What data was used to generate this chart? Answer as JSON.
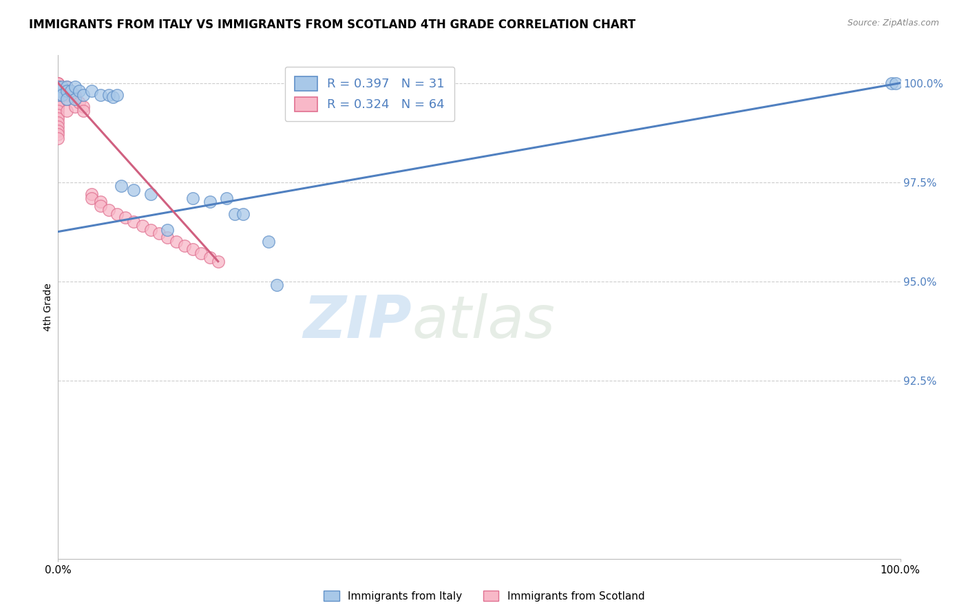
{
  "title": "IMMIGRANTS FROM ITALY VS IMMIGRANTS FROM SCOTLAND 4TH GRADE CORRELATION CHART",
  "source": "Source: ZipAtlas.com",
  "ylabel": "4th Grade",
  "xmin": 0.0,
  "xmax": 1.0,
  "ymin": 0.88,
  "ymax": 1.007,
  "legend_blue_r": "R = 0.397",
  "legend_blue_n": "N = 31",
  "legend_pink_r": "R = 0.324",
  "legend_pink_n": "N = 64",
  "watermark_zip": "ZIP",
  "watermark_atlas": "atlas",
  "blue_color": "#A8C8E8",
  "pink_color": "#F8B8C8",
  "blue_edge_color": "#6090C8",
  "pink_edge_color": "#E07090",
  "blue_line_color": "#5080C0",
  "pink_line_color": "#D06080",
  "background_color": "#FFFFFF",
  "grid_color": "#CCCCCC",
  "blue_scatter_x": [
    0.0,
    0.0,
    0.0,
    0.005,
    0.005,
    0.01,
    0.01,
    0.01,
    0.015,
    0.02,
    0.02,
    0.025,
    0.03,
    0.04,
    0.05,
    0.06,
    0.065,
    0.07,
    0.075,
    0.09,
    0.11,
    0.13,
    0.16,
    0.18,
    0.2,
    0.21,
    0.22,
    0.25,
    0.26,
    0.99,
    0.995
  ],
  "blue_scatter_y": [
    0.999,
    0.998,
    0.997,
    0.999,
    0.997,
    0.999,
    0.998,
    0.996,
    0.998,
    0.999,
    0.996,
    0.998,
    0.997,
    0.998,
    0.997,
    0.997,
    0.9965,
    0.997,
    0.974,
    0.973,
    0.972,
    0.963,
    0.971,
    0.97,
    0.971,
    0.967,
    0.967,
    0.96,
    0.949,
    1.0,
    1.0
  ],
  "pink_scatter_x": [
    0.0,
    0.0,
    0.0,
    0.0,
    0.0,
    0.0,
    0.0,
    0.0,
    0.0,
    0.0,
    0.0,
    0.0,
    0.0,
    0.0,
    0.0,
    0.0,
    0.0,
    0.0,
    0.0,
    0.0,
    0.0,
    0.0,
    0.0,
    0.0,
    0.0,
    0.0,
    0.0,
    0.0,
    0.0,
    0.0,
    0.0,
    0.0,
    0.0,
    0.0,
    0.005,
    0.005,
    0.01,
    0.01,
    0.01,
    0.01,
    0.02,
    0.02,
    0.02,
    0.025,
    0.03,
    0.03,
    0.04,
    0.04,
    0.05,
    0.05,
    0.06,
    0.07,
    0.08,
    0.09,
    0.1,
    0.11,
    0.12,
    0.13,
    0.14,
    0.15,
    0.16,
    0.17,
    0.18,
    0.19
  ],
  "pink_scatter_y": [
    1.0,
    1.0,
    1.0,
    0.999,
    0.999,
    0.999,
    0.999,
    0.999,
    0.998,
    0.998,
    0.998,
    0.998,
    0.998,
    0.997,
    0.997,
    0.997,
    0.997,
    0.997,
    0.996,
    0.996,
    0.996,
    0.996,
    0.995,
    0.995,
    0.994,
    0.994,
    0.993,
    0.992,
    0.991,
    0.99,
    0.989,
    0.988,
    0.987,
    0.986,
    0.998,
    0.997,
    0.999,
    0.997,
    0.996,
    0.993,
    0.997,
    0.996,
    0.994,
    0.995,
    0.994,
    0.993,
    0.972,
    0.971,
    0.97,
    0.969,
    0.968,
    0.967,
    0.966,
    0.965,
    0.964,
    0.963,
    0.962,
    0.961,
    0.96,
    0.959,
    0.958,
    0.957,
    0.956,
    0.955
  ],
  "blue_trendline_x": [
    0.0,
    1.0
  ],
  "blue_trendline_y": [
    0.9625,
    1.0
  ],
  "pink_trendline_x": [
    0.0,
    0.19
  ],
  "pink_trendline_y": [
    1.0,
    0.955
  ],
  "yticks": [
    0.925,
    0.95,
    0.975,
    1.0
  ],
  "ytick_labels": [
    "92.5%",
    "95.0%",
    "97.5%",
    "100.0%"
  ],
  "xtick_labels": [
    "0.0%",
    "100.0%"
  ],
  "title_fontsize": 12,
  "axis_label_fontsize": 10,
  "tick_fontsize": 11,
  "legend_fontsize": 13
}
